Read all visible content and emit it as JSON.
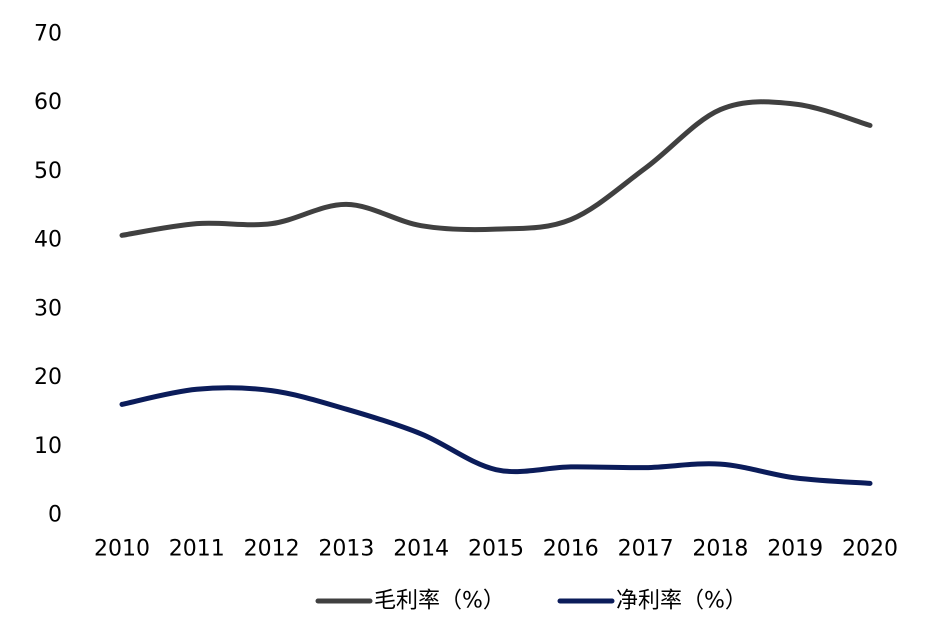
{
  "chart_data": {
    "type": "line",
    "title": "",
    "xlabel": "",
    "ylabel": "",
    "categories": [
      "2010",
      "2011",
      "2012",
      "2013",
      "2014",
      "2015",
      "2016",
      "2017",
      "2018",
      "2019",
      "2020"
    ],
    "ylim": [
      0,
      70
    ],
    "yticks": [
      "0",
      "10",
      "20",
      "30",
      "40",
      "50",
      "60",
      "70"
    ],
    "grid": false,
    "legend_position": "bottom",
    "series": [
      {
        "name": "毛利率（%）",
        "color": "#404040",
        "values": [
          40.7,
          42.4,
          42.4,
          45.2,
          42.1,
          41.6,
          43.0,
          50.5,
          59.0,
          59.8,
          56.7
        ]
      },
      {
        "name": "净利率（%）",
        "color": "#0b1c5a",
        "values": [
          16.1,
          18.3,
          18.1,
          15.4,
          11.8,
          6.6,
          7.0,
          6.9,
          7.4,
          5.4,
          4.6
        ]
      }
    ]
  }
}
